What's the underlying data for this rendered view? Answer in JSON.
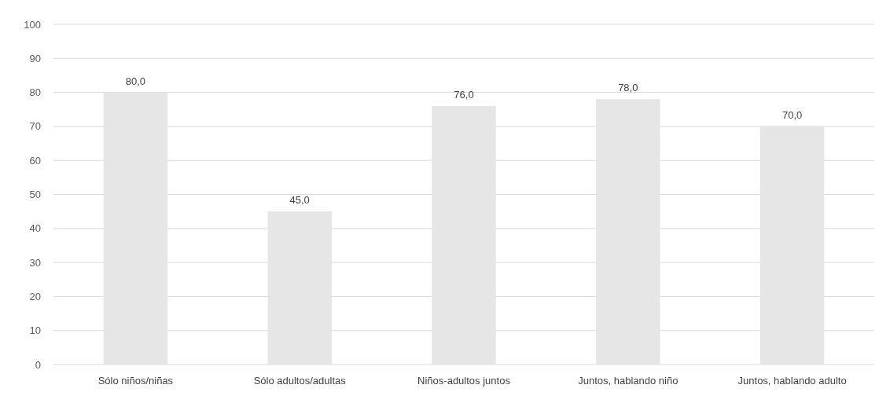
{
  "chart_data": {
    "type": "bar",
    "categories": [
      "Sólo niños/niñas",
      "Sólo adultos/adultas",
      "Niños-adultos juntos",
      "Juntos, hablando niño",
      "Juntos, hablando adulto"
    ],
    "values": [
      80,
      45,
      76,
      78,
      70
    ],
    "value_labels": [
      "80,0",
      "45,0",
      "76,0",
      "78,0",
      "70,0"
    ],
    "color": "#e6e6e6",
    "ylim": [
      0,
      100
    ],
    "yticks": [
      0,
      10,
      20,
      30,
      40,
      50,
      60,
      70,
      80,
      90,
      100
    ],
    "grid": "y"
  }
}
